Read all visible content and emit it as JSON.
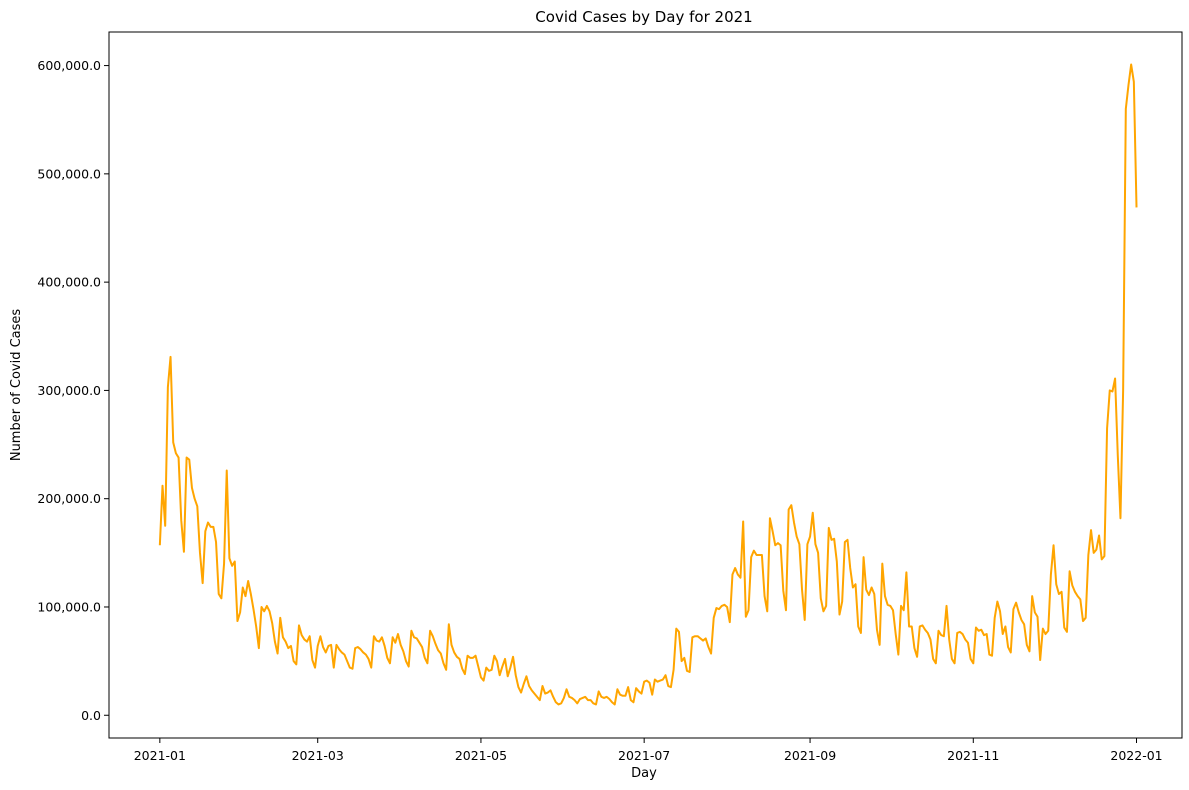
{
  "chart_data": {
    "type": "line",
    "title": "Covid Cases by Day for 2021",
    "xlabel": "Day",
    "ylabel": "Number of Covid Cases",
    "x_start": "2021-01-01",
    "x_end": "2021-12-31",
    "xlim": [
      "2020-12-13",
      "2022-01-18"
    ],
    "ylim": [
      -21000,
      631000
    ],
    "x_ticks": [
      "2021-01",
      "2021-03",
      "2021-05",
      "2021-07",
      "2021-09",
      "2021-11",
      "2022-01"
    ],
    "y_ticks": [
      "0.0",
      "100,000.0",
      "200,000.0",
      "300,000.0",
      "400,000.0",
      "500,000.0",
      "600,000.0"
    ],
    "grid": false,
    "legend": "none",
    "series": [
      {
        "color": "#FFA500",
        "values": [
          157000,
          212000,
          175000,
          303000,
          331000,
          252000,
          242000,
          238000,
          180000,
          151000,
          238000,
          236000,
          210000,
          200000,
          193000,
          150000,
          122000,
          170000,
          178000,
          174000,
          174000,
          160000,
          112000,
          108000,
          140000,
          226000,
          145000,
          138000,
          142000,
          87000,
          95000,
          118000,
          110000,
          124000,
          112000,
          98000,
          82000,
          62000,
          100000,
          96000,
          101000,
          96000,
          85000,
          68000,
          57000,
          90000,
          72000,
          68000,
          62000,
          64000,
          50000,
          47000,
          83000,
          74000,
          70000,
          68000,
          73000,
          51000,
          44000,
          64000,
          73000,
          63000,
          58000,
          64000,
          65000,
          44000,
          65000,
          61000,
          58000,
          56000,
          50000,
          44000,
          43000,
          62000,
          63000,
          61000,
          58000,
          56000,
          52000,
          44000,
          73000,
          69000,
          68000,
          72000,
          64000,
          53000,
          48000,
          72000,
          67000,
          75000,
          65000,
          59000,
          50000,
          45000,
          78000,
          72000,
          71000,
          67000,
          63000,
          53000,
          48000,
          78000,
          73000,
          66000,
          60000,
          57000,
          48000,
          42000,
          84000,
          65000,
          58000,
          54000,
          52000,
          43000,
          38000,
          55000,
          53000,
          53000,
          55000,
          45000,
          35000,
          32000,
          44000,
          41000,
          42000,
          55000,
          50000,
          37000,
          45000,
          52000,
          36000,
          44000,
          54000,
          37000,
          26000,
          21000,
          29000,
          36000,
          27000,
          23000,
          20000,
          17000,
          14000,
          27000,
          20000,
          21000,
          23000,
          17000,
          12000,
          10000,
          11000,
          16000,
          24000,
          17000,
          16000,
          14000,
          11000,
          15000,
          16000,
          17000,
          14000,
          14000,
          11000,
          10000,
          22000,
          17000,
          16000,
          17000,
          15000,
          12000,
          10000,
          24000,
          19000,
          18000,
          18000,
          26000,
          14000,
          12000,
          25000,
          22000,
          20000,
          31000,
          32000,
          30000,
          19000,
          33000,
          31000,
          32000,
          33000,
          37000,
          27000,
          26000,
          42000,
          80000,
          77000,
          50000,
          53000,
          41000,
          40000,
          72000,
          73000,
          73000,
          71000,
          69000,
          71000,
          63000,
          57000,
          90000,
          99000,
          98000,
          101000,
          102000,
          100000,
          86000,
          130000,
          136000,
          130000,
          127000,
          179000,
          91000,
          97000,
          146000,
          152000,
          148000,
          148000,
          148000,
          110000,
          96000,
          182000,
          170000,
          157000,
          159000,
          157000,
          115000,
          97000,
          190000,
          194000,
          178000,
          165000,
          158000,
          116000,
          88000,
          158000,
          165000,
          187000,
          158000,
          150000,
          108000,
          96000,
          101000,
          173000,
          162000,
          163000,
          142000,
          93000,
          105000,
          160000,
          162000,
          136000,
          118000,
          121000,
          82000,
          76000,
          146000,
          116000,
          111000,
          118000,
          112000,
          79000,
          65000,
          140000,
          110000,
          102000,
          101000,
          97000,
          75000,
          56000,
          101000,
          97000,
          132000,
          82000,
          82000,
          62000,
          54000,
          82000,
          83000,
          79000,
          76000,
          70000,
          52000,
          48000,
          78000,
          74000,
          73000,
          101000,
          70000,
          52000,
          48000,
          76000,
          77000,
          75000,
          70000,
          67000,
          52000,
          48000,
          81000,
          78000,
          79000,
          74000,
          75000,
          56000,
          55000,
          90000,
          105000,
          96000,
          75000,
          82000,
          63000,
          58000,
          98000,
          104000,
          95000,
          88000,
          84000,
          65000,
          59000,
          110000,
          95000,
          91000,
          51000,
          80000,
          75000,
          78000,
          130000,
          157000,
          121000,
          112000,
          114000,
          81000,
          77000,
          133000,
          120000,
          114000,
          110000,
          107000,
          87000,
          90000,
          148000,
          171000,
          150000,
          153000,
          166000,
          144000,
          147000,
          265000,
          300000,
          299000,
          311000,
          240000,
          182000,
          300000,
          560000,
          582000,
          601000,
          585000,
          469000
        ]
      }
    ]
  }
}
